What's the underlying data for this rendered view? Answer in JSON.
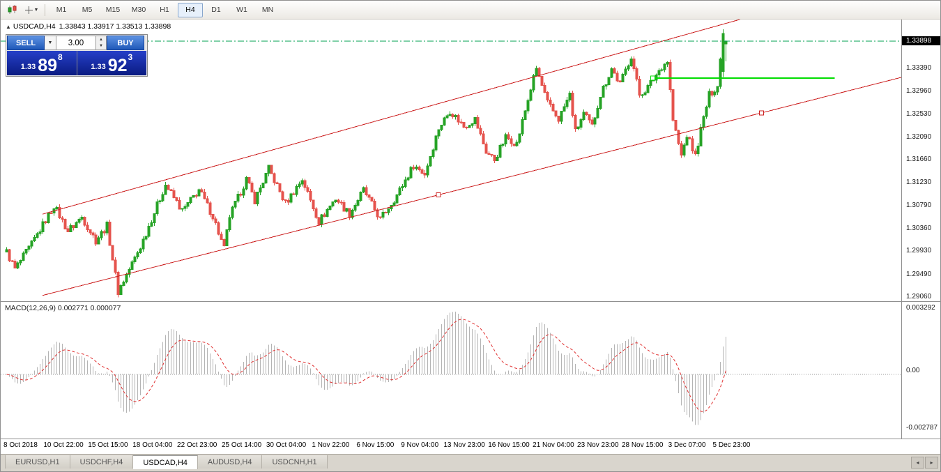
{
  "toolbar": {
    "timeframes": [
      {
        "label": "M1",
        "active": false
      },
      {
        "label": "M5",
        "active": false
      },
      {
        "label": "M15",
        "active": false
      },
      {
        "label": "M30",
        "active": false
      },
      {
        "label": "H1",
        "active": false
      },
      {
        "label": "H4",
        "active": true
      },
      {
        "label": "D1",
        "active": false
      },
      {
        "label": "W1",
        "active": false
      },
      {
        "label": "MN",
        "active": false
      }
    ]
  },
  "chart": {
    "header_toggle": "▲",
    "symbol_header": "USDCAD,H4",
    "ohlc_text": "1.33843 1.33917 1.33513 1.33898"
  },
  "trade_panel": {
    "sell_label": "SELL",
    "buy_label": "BUY",
    "volume": "3.00",
    "sell_price": {
      "prefix": "1.33",
      "big": "89",
      "sup": "8"
    },
    "buy_price": {
      "prefix": "1.33",
      "big": "92",
      "sup": "3"
    }
  },
  "price_axis": {
    "current": "1.33898",
    "ticks": [
      "1.33390",
      "1.32960",
      "1.32530",
      "1.32090",
      "1.31660",
      "1.31230",
      "1.30790",
      "1.30360",
      "1.29930",
      "1.29490",
      "1.29060"
    ]
  },
  "macd": {
    "label": "MACD(12,26,9) 0.002771 0.000077",
    "ticks": [
      "0.003292",
      "0.00",
      "-0.002787"
    ]
  },
  "x_axis": {
    "labels": [
      "8 Oct 2018",
      "10 Oct 22:00",
      "15 Oct 15:00",
      "18 Oct 04:00",
      "22 Oct 23:00",
      "25 Oct 14:00",
      "30 Oct 04:00",
      "1 Nov 22:00",
      "6 Nov 15:00",
      "9 Nov 04:00",
      "13 Nov 23:00",
      "16 Nov 15:00",
      "21 Nov 04:00",
      "23 Nov 23:00",
      "28 Nov 15:00",
      "3 Dec 07:00",
      "5 Dec 23:00"
    ]
  },
  "tabs": [
    {
      "label": "EURUSD,H1",
      "active": false
    },
    {
      "label": "USDCHF,H4",
      "active": false
    },
    {
      "label": "USDCAD,H4",
      "active": true
    },
    {
      "label": "AUDUSD,H4",
      "active": false
    },
    {
      "label": "USDCNH,H1",
      "active": false
    }
  ],
  "tab_arrows": {
    "left": "◂",
    "right": "▸"
  },
  "chart_data": {
    "type": "candlestick",
    "symbol": "USDCAD",
    "timeframe": "H4",
    "current_bar": {
      "open": 1.33843,
      "high": 1.33917,
      "low": 1.33513,
      "close": 1.33898
    },
    "price_min": 1.2897,
    "price_max": 1.3432,
    "num_candles": 259,
    "noise": 0.0014,
    "wick_noise": 0.0006,
    "bull_color": "#26a326",
    "bear_color": "#e5534d",
    "waypoints": [
      [
        0,
        1.299
      ],
      [
        3,
        1.2958
      ],
      [
        9,
        1.3005
      ],
      [
        17,
        1.3078
      ],
      [
        22,
        1.303
      ],
      [
        27,
        1.3056
      ],
      [
        32,
        1.3012
      ],
      [
        36,
        1.304
      ],
      [
        40,
        1.2915
      ],
      [
        48,
        1.3
      ],
      [
        57,
        1.3118
      ],
      [
        63,
        1.3068
      ],
      [
        69,
        1.3108
      ],
      [
        74,
        1.3058
      ],
      [
        78,
        1.2996
      ],
      [
        80,
        1.3058
      ],
      [
        86,
        1.3128
      ],
      [
        89,
        1.3088
      ],
      [
        94,
        1.3148
      ],
      [
        100,
        1.3082
      ],
      [
        106,
        1.3128
      ],
      [
        112,
        1.3048
      ],
      [
        118,
        1.3092
      ],
      [
        123,
        1.3062
      ],
      [
        128,
        1.3108
      ],
      [
        134,
        1.3052
      ],
      [
        140,
        1.3098
      ],
      [
        146,
        1.3155
      ],
      [
        150,
        1.3138
      ],
      [
        155,
        1.3225
      ],
      [
        159,
        1.3258
      ],
      [
        164,
        1.3228
      ],
      [
        168,
        1.3242
      ],
      [
        172,
        1.318
      ],
      [
        175,
        1.3165
      ],
      [
        179,
        1.3208
      ],
      [
        183,
        1.3195
      ],
      [
        188,
        1.33
      ],
      [
        190,
        1.3338
      ],
      [
        194,
        1.3272
      ],
      [
        198,
        1.3242
      ],
      [
        202,
        1.3288
      ],
      [
        204,
        1.3218
      ],
      [
        207,
        1.3252
      ],
      [
        210,
        1.3228
      ],
      [
        213,
        1.3288
      ],
      [
        217,
        1.3338
      ],
      [
        220,
        1.3308
      ],
      [
        224,
        1.3362
      ],
      [
        227,
        1.3288
      ],
      [
        230,
        1.3302
      ],
      [
        235,
        1.3342
      ],
      [
        237,
        1.3352
      ],
      [
        239,
        1.324
      ],
      [
        242,
        1.3172
      ],
      [
        244,
        1.3212
      ],
      [
        247,
        1.3172
      ],
      [
        249,
        1.3222
      ],
      [
        252,
        1.3288
      ],
      [
        255,
        1.3305
      ],
      [
        257,
        1.3405
      ],
      [
        258,
        1.339
      ]
    ],
    "spike_candle": {
      "open": 1.3332,
      "high": 1.3412,
      "low": 1.3322,
      "close": 1.3404
    },
    "final_candle": {
      "open": 1.33843,
      "high": 1.33917,
      "low": 1.33513,
      "close": 1.33898
    },
    "trendlines": [
      {
        "name": "channel-lower",
        "x1": 0.0465,
        "p1": 1.2908,
        "x2": 1.0,
        "p2": 1.3321,
        "color": "#cc2020",
        "handles": [
          0.486,
          0.845
        ]
      },
      {
        "name": "channel-upper",
        "x1": 0.0465,
        "p1": 1.3062,
        "x2": 0.8359,
        "p2": 1.3438,
        "color": "#cc2020",
        "handles": []
      }
    ],
    "green_line": {
      "price": 1.332,
      "x1": 0.724,
      "x2": 0.926,
      "color": "#00dd00"
    },
    "current_price_line": {
      "price": 1.33898,
      "color": "#00a050",
      "style": "dash-dot"
    },
    "indicator": {
      "name": "MACD",
      "params": [
        12,
        26,
        9
      ],
      "macd_value": 0.002771,
      "signal_value": 7.7e-05,
      "scale_max": 0.003292,
      "scale_min": -0.002787,
      "histogram_color": "#b4b4b4",
      "signal_color": "#e03030"
    }
  }
}
